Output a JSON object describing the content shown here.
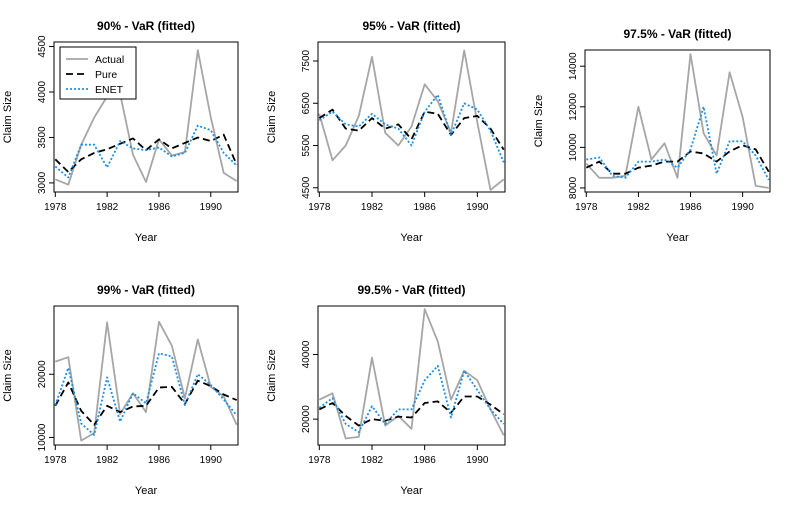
{
  "figure": {
    "legend_entries": [
      "Actual",
      "Pure",
      "ENET"
    ],
    "colors": {
      "actual": "#a6a6a6",
      "pure": "#000000",
      "enet": "#1f8fe0"
    }
  },
  "chart_data": [
    {
      "type": "line",
      "title": "90% - VaR (fitted)",
      "xlabel": "Year",
      "ylabel": "Claim Size",
      "x": [
        1978,
        1979,
        1980,
        1981,
        1982,
        1983,
        1984,
        1985,
        1986,
        1987,
        1988,
        1989,
        1990,
        1991,
        1992
      ],
      "xlim": [
        1977.9,
        1992.1
      ],
      "ylim": [
        2900,
        4550
      ],
      "xticks": [
        1978,
        1982,
        1986,
        1990
      ],
      "yticks": [
        3000,
        3500,
        4000,
        4500
      ],
      "legend": "top-left",
      "series": [
        {
          "name": "Actual",
          "values": [
            3040,
            2980,
            3420,
            3720,
            3950,
            3980,
            3310,
            3010,
            3480,
            3300,
            3340,
            4460,
            3720,
            3110,
            3020
          ]
        },
        {
          "name": "Pure",
          "values": [
            3260,
            3120,
            3260,
            3330,
            3370,
            3430,
            3490,
            3360,
            3480,
            3380,
            3440,
            3500,
            3460,
            3530,
            3200
          ]
        },
        {
          "name": "ENET",
          "values": [
            3180,
            3060,
            3420,
            3420,
            3170,
            3460,
            3380,
            3360,
            3390,
            3290,
            3330,
            3630,
            3580,
            3330,
            3190
          ]
        }
      ]
    },
    {
      "type": "line",
      "title": "95% - VaR (fitted)",
      "xlabel": "Year",
      "ylabel": "Claim Size",
      "x": [
        1978,
        1979,
        1980,
        1981,
        1982,
        1983,
        1984,
        1985,
        1986,
        1987,
        1988,
        1989,
        1990,
        1991,
        1992
      ],
      "xlim": [
        1977.9,
        1992.1
      ],
      "ylim": [
        4400,
        7950
      ],
      "xticks": [
        1978,
        1982,
        1986,
        1990
      ],
      "yticks": [
        4500,
        5500,
        6500,
        7500
      ],
      "series": [
        {
          "name": "Actual",
          "values": [
            6250,
            5150,
            5500,
            6200,
            7600,
            5800,
            5500,
            5950,
            6950,
            6550,
            5800,
            7750,
            6050,
            4450,
            4700
          ]
        },
        {
          "name": "Pure",
          "values": [
            6150,
            6350,
            5900,
            5850,
            6150,
            5900,
            6000,
            5650,
            6300,
            6250,
            5750,
            6150,
            6200,
            5900,
            5400
          ]
        },
        {
          "name": "ENET",
          "values": [
            6100,
            6300,
            6000,
            5950,
            6250,
            6000,
            5900,
            5500,
            6300,
            6700,
            5750,
            6500,
            6350,
            5850,
            5100
          ]
        }
      ]
    },
    {
      "type": "line",
      "title": "97.5% - VaR (fitted)",
      "xlabel": "Year",
      "ylabel": "Claim Size",
      "x": [
        1978,
        1979,
        1980,
        1981,
        1982,
        1983,
        1984,
        1985,
        1986,
        1987,
        1988,
        1989,
        1990,
        1991,
        1992
      ],
      "xlim": [
        1977.9,
        1992.1
      ],
      "ylim": [
        7800,
        14800
      ],
      "xticks": [
        1978,
        1982,
        1986,
        1990
      ],
      "yticks": [
        8000,
        10000,
        12000,
        14000
      ],
      "series": [
        {
          "name": "Actual",
          "values": [
            9200,
            8500,
            8500,
            8600,
            12000,
            9400,
            10200,
            8500,
            14600,
            10700,
            9600,
            13700,
            11500,
            8100,
            8000
          ]
        },
        {
          "name": "Pure",
          "values": [
            9000,
            9300,
            8700,
            8700,
            9000,
            9100,
            9300,
            9300,
            9800,
            9700,
            9300,
            9800,
            10100,
            9900,
            8800
          ]
        },
        {
          "name": "ENET",
          "values": [
            9400,
            9500,
            8600,
            8500,
            9300,
            9300,
            9400,
            9000,
            9900,
            12000,
            8700,
            10300,
            10300,
            9600,
            8400
          ]
        }
      ]
    },
    {
      "type": "line",
      "title": "99% - VaR (fitted)",
      "xlabel": "Year",
      "ylabel": "Claim Size",
      "x": [
        1978,
        1979,
        1980,
        1981,
        1982,
        1983,
        1984,
        1985,
        1986,
        1987,
        1988,
        1989,
        1990,
        1991,
        1992
      ],
      "xlim": [
        1977.9,
        1992.1
      ],
      "ylim": [
        8800,
        30800
      ],
      "xticks": [
        1978,
        1982,
        1986,
        1990
      ],
      "yticks": [
        10000,
        20000
      ],
      "series": [
        {
          "name": "Actual",
          "values": [
            22000,
            22700,
            9500,
            10700,
            28200,
            13700,
            17000,
            14000,
            28300,
            24500,
            16200,
            25500,
            18000,
            16500,
            12000
          ]
        },
        {
          "name": "Pure",
          "values": [
            15000,
            18700,
            14200,
            12000,
            15000,
            14000,
            14900,
            15000,
            17900,
            18000,
            15300,
            19000,
            18100,
            16800,
            15900
          ]
        },
        {
          "name": "ENET",
          "values": [
            15100,
            21000,
            12200,
            10400,
            19500,
            12500,
            17000,
            15400,
            23300,
            22800,
            15100,
            20000,
            18300,
            16000,
            13500
          ]
        }
      ]
    },
    {
      "type": "line",
      "title": "99.5% - VaR (fitted)",
      "xlabel": "Year",
      "ylabel": "Claim Size",
      "x": [
        1978,
        1979,
        1980,
        1981,
        1982,
        1983,
        1984,
        1985,
        1986,
        1987,
        1988,
        1989,
        1990,
        1991,
        1992
      ],
      "xlim": [
        1977.9,
        1992.1
      ],
      "ylim": [
        12000,
        55000
      ],
      "xticks": [
        1978,
        1982,
        1986,
        1990
      ],
      "yticks": [
        20000,
        40000
      ],
      "series": [
        {
          "name": "Actual",
          "values": [
            26000,
            28000,
            14000,
            14500,
            39000,
            18000,
            21000,
            17000,
            54000,
            44000,
            26000,
            35000,
            32000,
            23000,
            15000
          ]
        },
        {
          "name": "Pure",
          "values": [
            23000,
            25000,
            21000,
            18000,
            20000,
            19500,
            20800,
            20500,
            25000,
            25500,
            22000,
            27000,
            27000,
            24500,
            21500
          ]
        },
        {
          "name": "ENET",
          "values": [
            23500,
            26500,
            18500,
            16000,
            24000,
            18500,
            23000,
            23000,
            32000,
            36500,
            20500,
            35000,
            29000,
            23000,
            18500
          ]
        }
      ]
    }
  ]
}
